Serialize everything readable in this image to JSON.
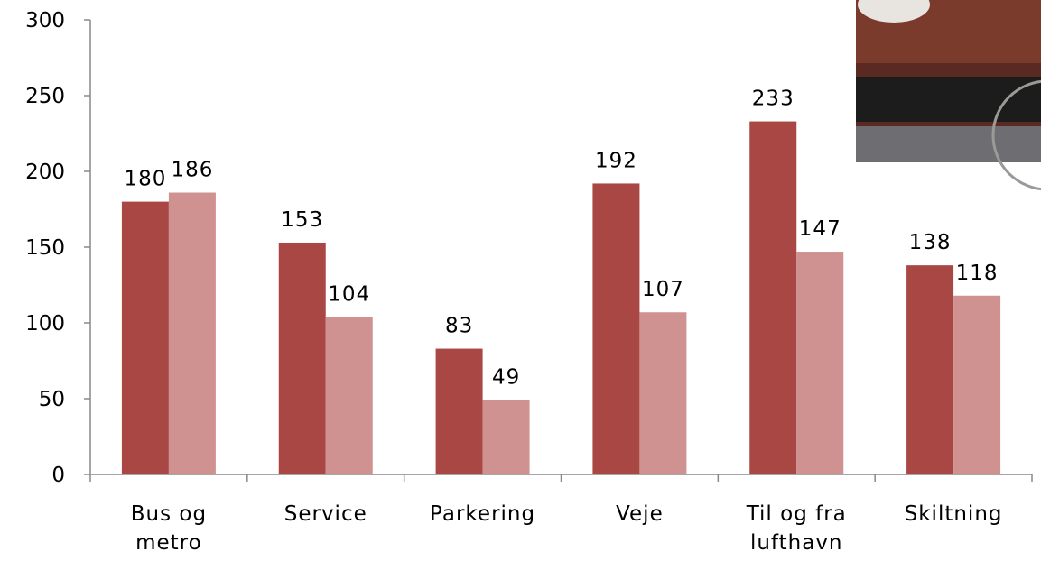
{
  "chart_data": {
    "type": "bar",
    "categories": [
      "Bus og metro",
      "Service",
      "Parkering",
      "Veje",
      "Til og fra lufthavn",
      "Skiltning"
    ],
    "series": [
      {
        "color": "#a94744",
        "values": [
          180,
          153,
          83,
          192,
          233,
          138
        ]
      },
      {
        "color": "#d09290",
        "values": [
          186,
          104,
          49,
          107,
          147,
          118
        ]
      }
    ],
    "ylim": [
      0,
      300
    ],
    "yticks": [
      0,
      50,
      100,
      150,
      200,
      250,
      300
    ]
  }
}
